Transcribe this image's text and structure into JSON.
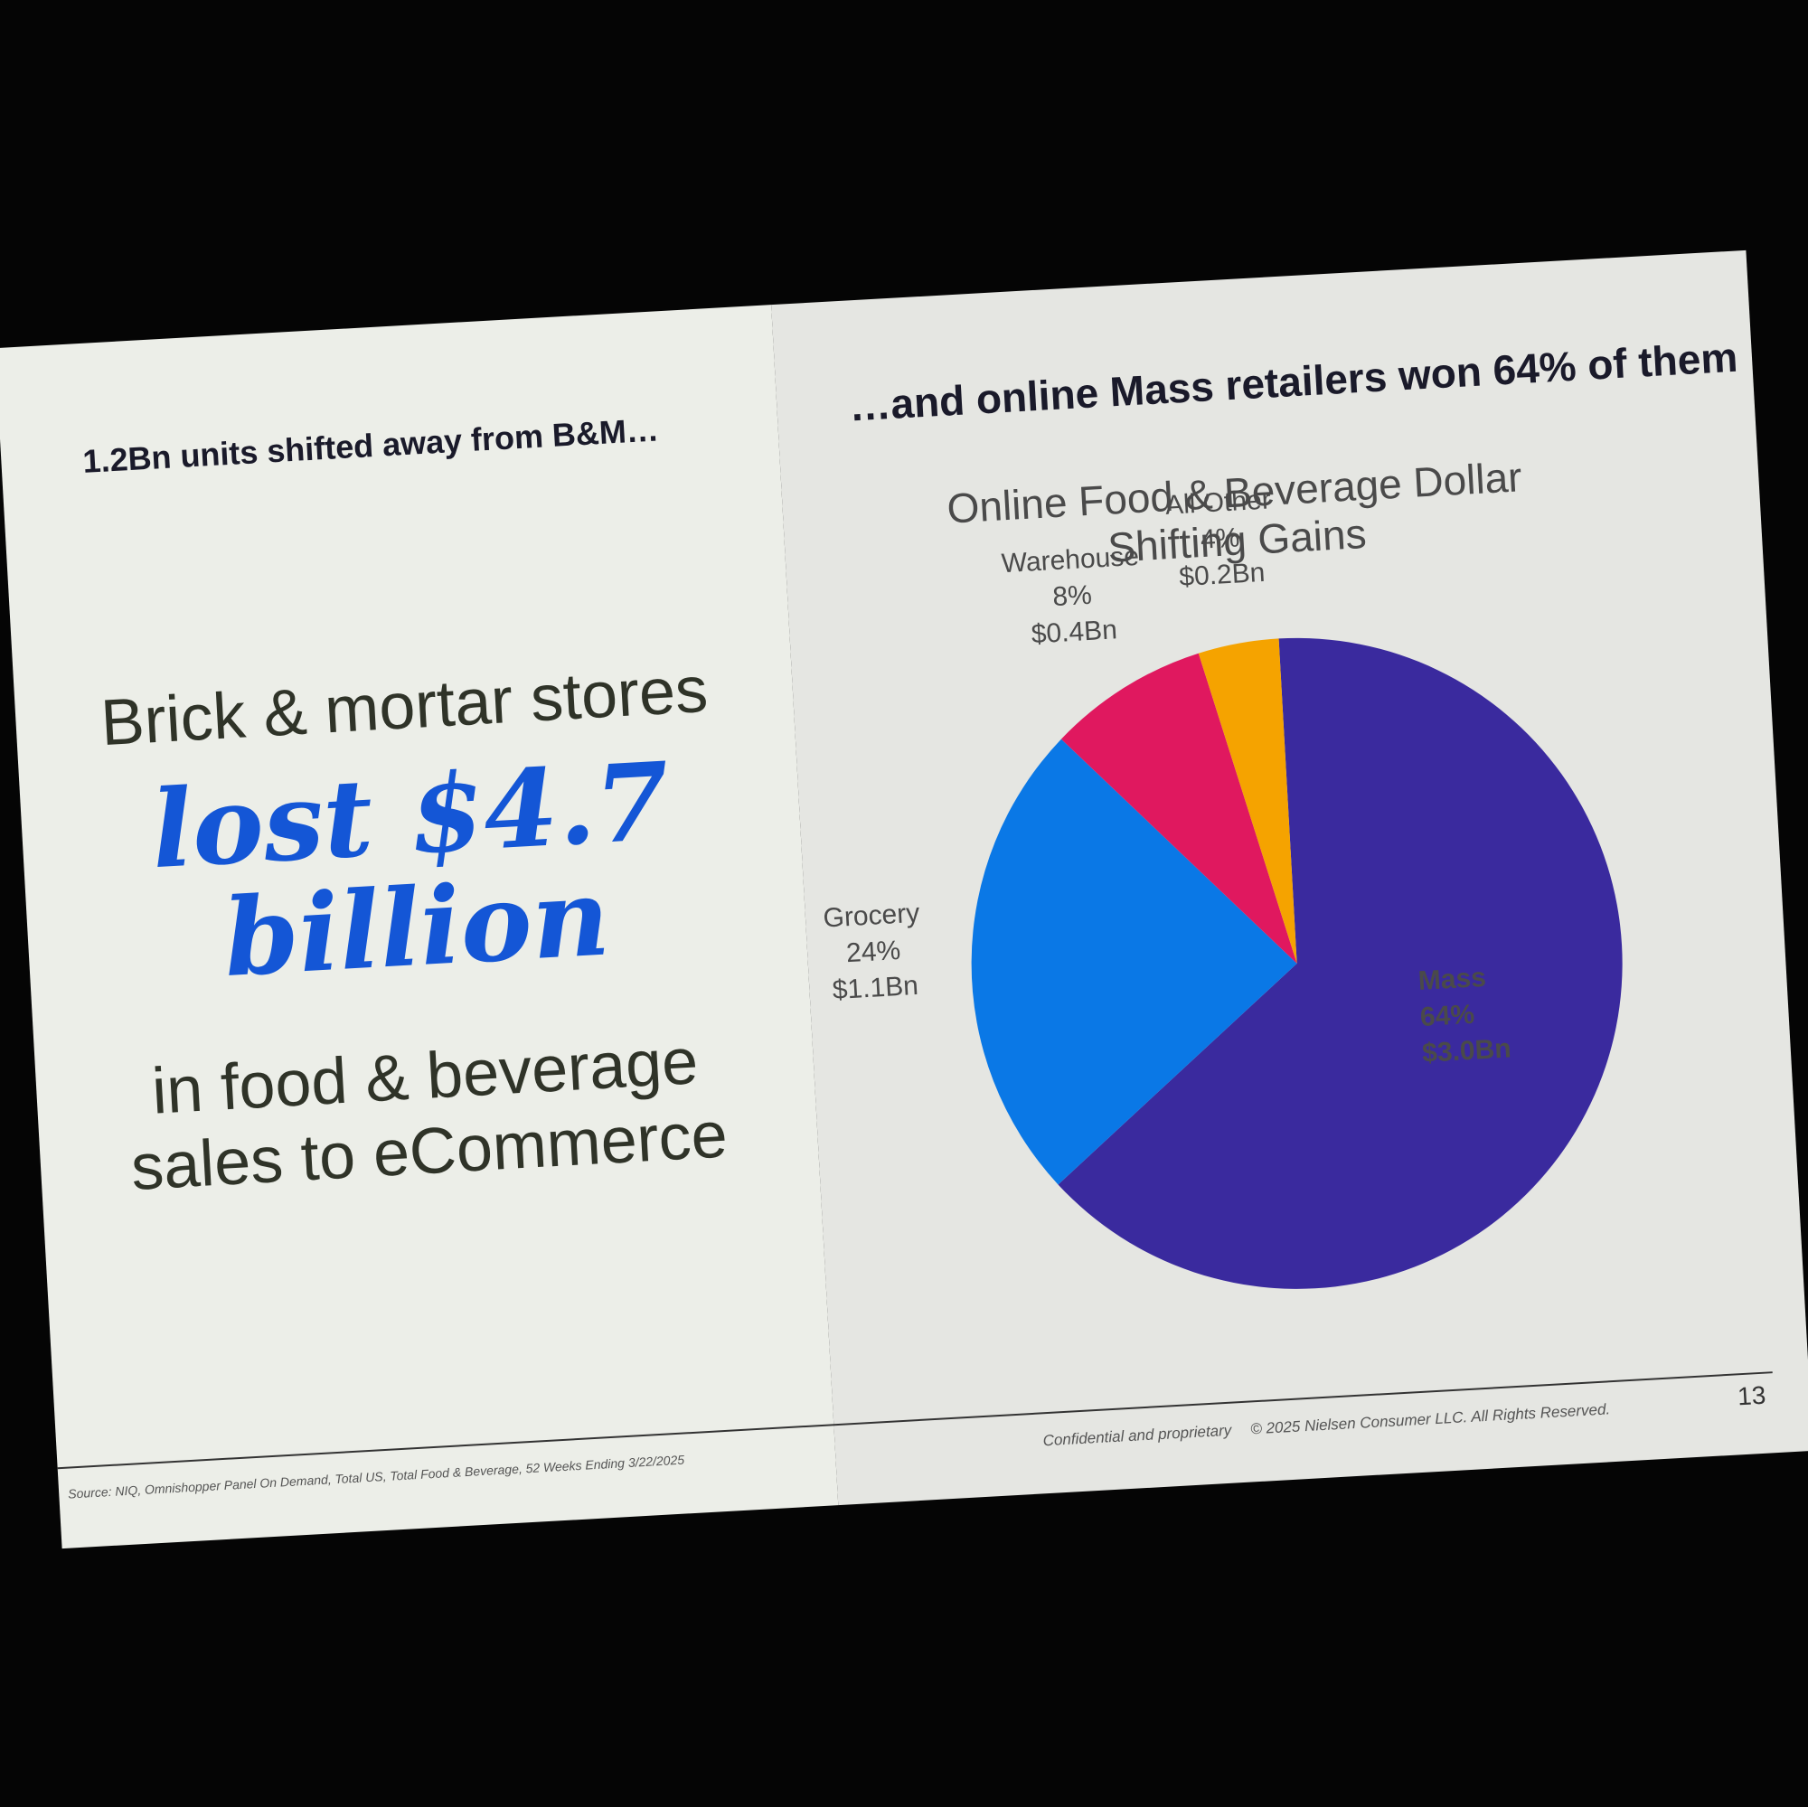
{
  "left": {
    "heading": "1.2Bn units shifted away from B&M…",
    "line1": "Brick & mortar stores",
    "line2": "lost $4.7 billion",
    "line3": "in food & beverage sales to eCommerce"
  },
  "chart_data": {
    "type": "pie",
    "heading": "…and online Mass retailers won 64% of them",
    "title": "Online Food & Beverage Dollar Shifting Gains",
    "categories": [
      "Mass",
      "Grocery",
      "Warehouse",
      "All Other"
    ],
    "values": [
      64,
      24,
      8,
      4
    ],
    "value_labels": [
      "64%",
      "24%",
      "8%",
      "4%"
    ],
    "amounts": [
      3.0,
      1.1,
      0.4,
      0.2
    ],
    "amount_labels": [
      "$3.0Bn",
      "$1.1Bn",
      "$0.4Bn",
      "$0.2Bn"
    ],
    "colors": [
      "#3a2a9e",
      "#0a78e6",
      "#e0185f",
      "#f5a300"
    ]
  },
  "footer": {
    "source": "Source: NIQ, Omnishopper Panel On Demand, Total US, Total Food & Beverage, 52 Weeks Ending 3/22/2025",
    "confidential": "Confidential and proprietary",
    "copyright": "© 2025 Nielsen Consumer LLC. All Rights Reserved.",
    "page": 13
  }
}
